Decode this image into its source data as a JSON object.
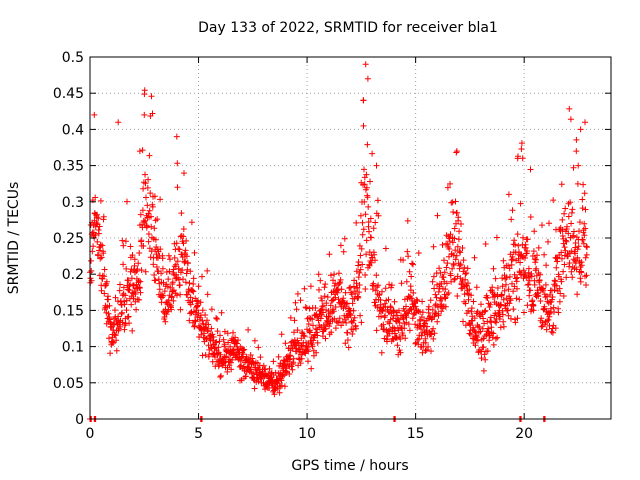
{
  "chart_data": {
    "type": "scatter",
    "title": "Day 133 of 2022, SRMTID for receiver bla1",
    "xlabel": "GPS time / hours",
    "ylabel": "SRMTID / TECUs",
    "xlim": [
      0,
      24
    ],
    "ylim": [
      0,
      0.5
    ],
    "xticks": [
      0,
      5,
      10,
      15,
      20
    ],
    "yticks": [
      0,
      0.05,
      0.1,
      0.15,
      0.2,
      0.25,
      0.3,
      0.35,
      0.4,
      0.45,
      0.5
    ],
    "xtick_labels": [
      "0",
      "5",
      "10",
      "15",
      "20"
    ],
    "ytick_labels": [
      "0",
      "0.05",
      "0.1",
      "0.15",
      "0.2",
      "0.25",
      "0.3",
      "0.35",
      "0.4",
      "0.45",
      "0.5"
    ],
    "grid": true,
    "marker": "+",
    "color": "#ff0000",
    "series": [
      {
        "name": "SRMTID",
        "trend": {
          "x": [
            0.0,
            0.2,
            0.4,
            0.6,
            0.8,
            1.0,
            1.3,
            1.6,
            1.9,
            2.2,
            2.5,
            2.8,
            3.1,
            3.4,
            3.7,
            4.0,
            4.3,
            4.6,
            4.9,
            5.2,
            5.5,
            5.8,
            6.1,
            6.4,
            6.7,
            7.0,
            7.3,
            7.6,
            7.9,
            8.2,
            8.5,
            8.8,
            9.1,
            9.4,
            9.7,
            10.0,
            10.3,
            10.6,
            10.9,
            11.2,
            11.5,
            11.8,
            12.1,
            12.4,
            12.7,
            13.0,
            13.3,
            13.6,
            13.9,
            14.2,
            14.5,
            14.8,
            15.1,
            15.4,
            15.7,
            16.0,
            16.3,
            16.6,
            16.9,
            17.2,
            17.5,
            17.8,
            18.1,
            18.4,
            18.7,
            19.0,
            19.3,
            19.6,
            19.9,
            20.2,
            20.5,
            20.8,
            21.1,
            21.4,
            21.7,
            22.0,
            22.3,
            22.6,
            22.9
          ],
          "center": [
            0.19,
            0.29,
            0.25,
            0.2,
            0.15,
            0.12,
            0.13,
            0.16,
            0.19,
            0.17,
            0.28,
            0.3,
            0.21,
            0.16,
            0.17,
            0.2,
            0.22,
            0.18,
            0.15,
            0.13,
            0.11,
            0.09,
            0.08,
            0.09,
            0.1,
            0.08,
            0.07,
            0.07,
            0.06,
            0.055,
            0.05,
            0.06,
            0.08,
            0.09,
            0.1,
            0.11,
            0.12,
            0.14,
            0.15,
            0.16,
            0.17,
            0.15,
            0.13,
            0.2,
            0.3,
            0.2,
            0.16,
            0.14,
            0.13,
            0.12,
            0.14,
            0.17,
            0.13,
            0.12,
            0.14,
            0.17,
            0.19,
            0.22,
            0.25,
            0.19,
            0.15,
            0.12,
            0.11,
            0.14,
            0.15,
            0.17,
            0.19,
            0.2,
            0.22,
            0.19,
            0.2,
            0.17,
            0.15,
            0.19,
            0.22,
            0.25,
            0.23,
            0.22,
            0.26
          ],
          "spread": [
            0.03,
            0.08,
            0.07,
            0.06,
            0.04,
            0.04,
            0.05,
            0.06,
            0.07,
            0.05,
            0.09,
            0.08,
            0.06,
            0.05,
            0.05,
            0.07,
            0.08,
            0.05,
            0.04,
            0.04,
            0.04,
            0.03,
            0.03,
            0.03,
            0.03,
            0.03,
            0.025,
            0.025,
            0.02,
            0.02,
            0.02,
            0.025,
            0.03,
            0.035,
            0.04,
            0.04,
            0.045,
            0.05,
            0.05,
            0.05,
            0.05,
            0.05,
            0.05,
            0.08,
            0.15,
            0.08,
            0.06,
            0.05,
            0.05,
            0.05,
            0.05,
            0.06,
            0.05,
            0.05,
            0.05,
            0.06,
            0.07,
            0.08,
            0.09,
            0.07,
            0.05,
            0.05,
            0.05,
            0.06,
            0.06,
            0.06,
            0.07,
            0.07,
            0.08,
            0.07,
            0.07,
            0.06,
            0.05,
            0.07,
            0.08,
            0.09,
            0.08,
            0.07,
            0.09
          ]
        },
        "peaks": [
          [
            0.2,
            0.42
          ],
          [
            1.3,
            0.41
          ],
          [
            2.3,
            0.37
          ],
          [
            2.5,
            0.42
          ],
          [
            4.0,
            0.39
          ],
          [
            12.7,
            0.49
          ],
          [
            12.8,
            0.47
          ],
          [
            12.6,
            0.44
          ],
          [
            13.2,
            0.35
          ],
          [
            16.9,
            0.37
          ],
          [
            19.7,
            0.36
          ],
          [
            22.6,
            0.4
          ],
          [
            22.8,
            0.41
          ],
          [
            22.4,
            0.37
          ]
        ],
        "zeros": [
          0.0,
          0.2,
          5.1,
          14.0,
          19.8,
          20.9
        ]
      }
    ]
  }
}
